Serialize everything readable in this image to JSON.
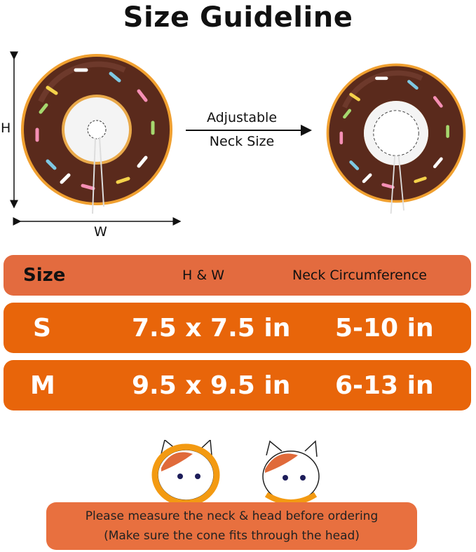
{
  "title": "Size Guideline",
  "diagram": {
    "height_label": "H",
    "width_label": "W",
    "arrow_label_line1": "Adjustable",
    "arrow_label_line2": "Neck Size"
  },
  "table": {
    "headers": [
      "Size",
      "H & W",
      "Neck Circumference"
    ],
    "rows": [
      {
        "size": "S",
        "hw": "7.5 x 7.5 in",
        "neck": "5-10 in"
      },
      {
        "size": "M",
        "hw": "9.5 x 9.5 in",
        "neck": "6-13 in"
      }
    ],
    "colors": {
      "header": "#e36b3f",
      "row": "#e8650a",
      "banner": "#e8703f"
    }
  },
  "note": {
    "line1": "Please measure the neck & head before ordering",
    "line2": "(Make sure the cone fits through the head)"
  }
}
